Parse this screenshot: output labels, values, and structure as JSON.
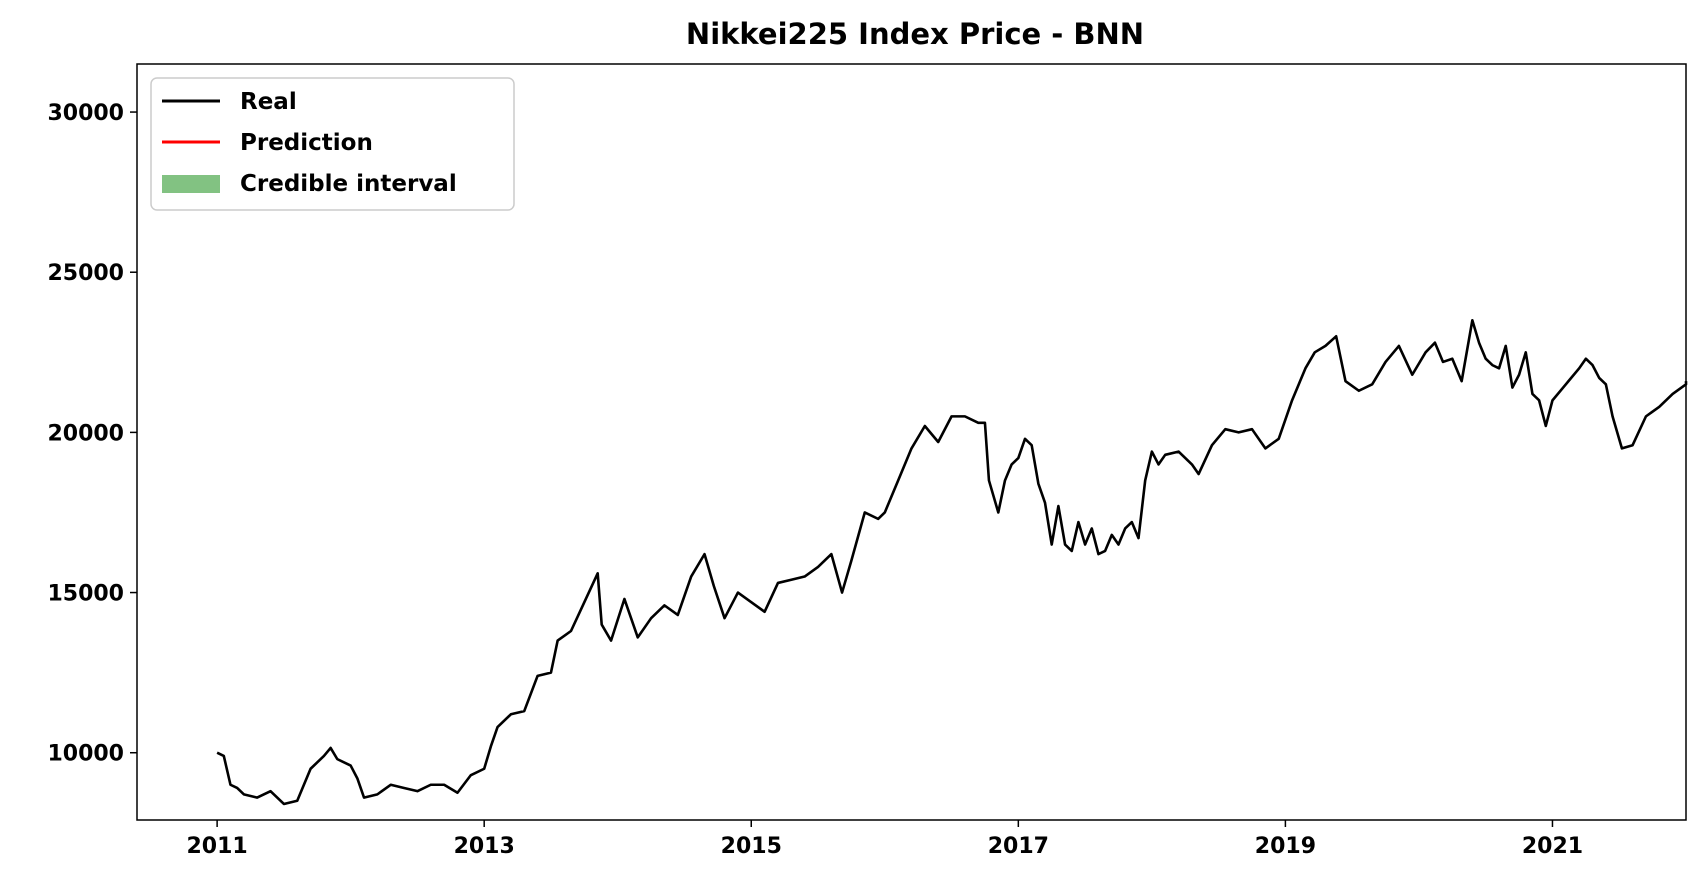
{
  "chart_data": {
    "type": "line",
    "title": "Nikkei225 Index Price - BNN",
    "xlabel": "",
    "ylabel": "",
    "xlim": [
      2010.4,
      2022.0
    ],
    "ylim": [
      7900,
      31500
    ],
    "x_ticks": [
      2011,
      2013,
      2015,
      2017,
      2019,
      2021
    ],
    "x_tick_labels": [
      "2011",
      "2013",
      "2015",
      "2017",
      "2019",
      "2021"
    ],
    "y_ticks": [
      10000,
      15000,
      20000,
      25000,
      30000
    ],
    "y_tick_labels": [
      "10000",
      "15000",
      "20000",
      "25000",
      "30000"
    ],
    "grid": false,
    "legend_position": "top-left",
    "legend": [
      {
        "label": "Real",
        "kind": "line",
        "color": "#000000"
      },
      {
        "label": "Prediction",
        "kind": "line",
        "color": "#ff0000"
      },
      {
        "label": "Credible interval",
        "kind": "patch",
        "color": "#82c282"
      }
    ],
    "series": [
      {
        "name": "Real",
        "color": "#000000",
        "points": [
          [
            2011.0,
            10000
          ],
          [
            2011.05,
            9900
          ],
          [
            2011.1,
            9000
          ],
          [
            2011.15,
            8900
          ],
          [
            2011.2,
            8700
          ],
          [
            2011.3,
            8600
          ],
          [
            2011.4,
            8800
          ],
          [
            2011.5,
            8400
          ],
          [
            2011.6,
            8500
          ],
          [
            2011.7,
            9500
          ],
          [
            2011.8,
            9900
          ],
          [
            2011.85,
            10150
          ],
          [
            2011.9,
            9800
          ],
          [
            2012.0,
            9600
          ],
          [
            2012.05,
            9200
          ],
          [
            2012.1,
            8600
          ],
          [
            2012.2,
            8700
          ],
          [
            2012.3,
            9000
          ],
          [
            2012.4,
            8900
          ],
          [
            2012.5,
            8800
          ],
          [
            2012.6,
            9000
          ],
          [
            2012.7,
            9000
          ],
          [
            2012.8,
            8750
          ],
          [
            2012.9,
            9300
          ],
          [
            2013.0,
            9500
          ],
          [
            2013.05,
            10200
          ],
          [
            2013.1,
            10800
          ],
          [
            2013.2,
            11200
          ],
          [
            2013.3,
            11300
          ],
          [
            2013.4,
            12400
          ],
          [
            2013.5,
            12500
          ],
          [
            2013.55,
            13500
          ],
          [
            2013.65,
            13800
          ],
          [
            2013.75,
            14700
          ],
          [
            2013.85,
            15600
          ],
          [
            2013.88,
            14000
          ],
          [
            2013.95,
            13500
          ],
          [
            2014.05,
            14800
          ],
          [
            2014.15,
            13600
          ],
          [
            2014.25,
            14200
          ],
          [
            2014.35,
            14600
          ],
          [
            2014.45,
            14300
          ],
          [
            2014.55,
            15500
          ],
          [
            2014.65,
            16200
          ],
          [
            2014.72,
            15200
          ],
          [
            2014.8,
            14200
          ],
          [
            2014.9,
            15000
          ],
          [
            2015.0,
            14700
          ],
          [
            2015.1,
            14400
          ],
          [
            2015.2,
            15300
          ],
          [
            2015.3,
            15400
          ],
          [
            2015.4,
            15500
          ],
          [
            2015.5,
            15800
          ],
          [
            2015.6,
            16200
          ],
          [
            2015.68,
            15000
          ],
          [
            2015.75,
            16000
          ],
          [
            2015.85,
            17500
          ],
          [
            2015.95,
            17300
          ],
          [
            2016.0,
            17500
          ],
          [
            2016.1,
            18500
          ],
          [
            2016.2,
            19500
          ],
          [
            2016.3,
            20200
          ],
          [
            2016.4,
            19700
          ],
          [
            2016.5,
            20500
          ],
          [
            2016.6,
            20500
          ],
          [
            2016.7,
            20300
          ],
          [
            2016.75,
            20300
          ],
          [
            2016.78,
            18500
          ],
          [
            2016.85,
            17500
          ],
          [
            2016.9,
            18500
          ],
          [
            2016.95,
            19000
          ],
          [
            2017.0,
            19200
          ],
          [
            2017.05,
            19800
          ],
          [
            2017.1,
            19600
          ],
          [
            2017.15,
            18400
          ],
          [
            2017.2,
            17800
          ],
          [
            2017.25,
            16500
          ],
          [
            2017.3,
            17700
          ],
          [
            2017.35,
            16500
          ],
          [
            2017.4,
            16300
          ],
          [
            2017.45,
            17200
          ],
          [
            2017.5,
            16500
          ],
          [
            2017.55,
            17000
          ],
          [
            2017.6,
            16200
          ],
          [
            2017.65,
            16300
          ],
          [
            2017.7,
            16800
          ],
          [
            2017.75,
            16500
          ],
          [
            2017.8,
            17000
          ],
          [
            2017.85,
            17200
          ],
          [
            2017.9,
            16700
          ],
          [
            2017.95,
            18500
          ],
          [
            2018.0,
            19400
          ],
          [
            2018.05,
            19000
          ],
          [
            2018.1,
            19300
          ],
          [
            2018.2,
            19400
          ],
          [
            2018.3,
            19000
          ],
          [
            2018.35,
            18700
          ],
          [
            2018.45,
            19600
          ],
          [
            2018.55,
            20100
          ],
          [
            2018.65,
            20000
          ],
          [
            2018.75,
            20100
          ],
          [
            2018.85,
            19500
          ],
          [
            2018.95,
            19800
          ],
          [
            2019.0,
            20400
          ],
          [
            2019.05,
            21000
          ],
          [
            2019.1,
            21500
          ],
          [
            2019.15,
            22000
          ],
          [
            2019.22,
            22500
          ],
          [
            2019.3,
            22700
          ],
          [
            2019.38,
            23000
          ],
          [
            2019.45,
            21600
          ],
          [
            2019.55,
            21300
          ],
          [
            2019.65,
            21500
          ],
          [
            2019.75,
            22200
          ],
          [
            2019.85,
            22700
          ],
          [
            2019.95,
            21800
          ],
          [
            2020.05,
            22500
          ],
          [
            2020.12,
            22800
          ],
          [
            2020.18,
            22200
          ],
          [
            2020.25,
            22300
          ],
          [
            2020.32,
            21600
          ],
          [
            2020.4,
            23500
          ],
          [
            2020.45,
            22800
          ],
          [
            2020.5,
            22300
          ],
          [
            2020.55,
            22100
          ],
          [
            2020.6,
            22000
          ],
          [
            2020.65,
            22700
          ],
          [
            2020.7,
            21400
          ],
          [
            2020.75,
            21800
          ],
          [
            2020.8,
            22500
          ],
          [
            2020.85,
            21200
          ],
          [
            2020.9,
            21000
          ],
          [
            2020.95,
            20200
          ],
          [
            2021.0,
            21000
          ],
          [
            2021.08,
            21400
          ],
          [
            2021.12,
            21600
          ],
          [
            2021.2,
            22000
          ],
          [
            2021.25,
            22300
          ],
          [
            2021.3,
            22100
          ],
          [
            2021.35,
            21700
          ],
          [
            2021.4,
            21500
          ],
          [
            2021.45,
            20500
          ],
          [
            2021.52,
            19500
          ],
          [
            2021.6,
            19600
          ],
          [
            2021.7,
            20500
          ],
          [
            2021.8,
            20800
          ],
          [
            2021.9,
            21200
          ],
          [
            2022.0,
            21500
          ],
          [
            2022.0,
            21600
          ]
        ]
      }
    ]
  }
}
